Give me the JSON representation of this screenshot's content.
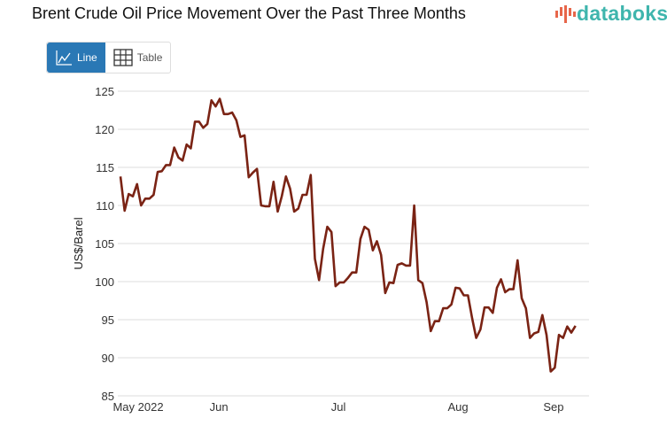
{
  "header": {
    "title": "Brent Crude Oil Price Movement Over the Past Three Months",
    "logo": "databoks"
  },
  "view_toggle": {
    "line_label": "Line",
    "table_label": "Table",
    "active": "Line"
  },
  "colors": {
    "line": "#7a2314",
    "accent": "#2a78b5",
    "logo": "#3fb5ad"
  },
  "chart_data": {
    "type": "line",
    "title": "Brent Crude Oil Price Movement Over the Past Three Months",
    "ylabel": "US$/Barel",
    "ylim": [
      85,
      125
    ],
    "yticks": [
      85,
      90,
      95,
      100,
      105,
      110,
      115,
      120,
      125
    ],
    "grid": true,
    "xticks": [
      {
        "label": "May 2022",
        "index": 0
      },
      {
        "label": "Jun",
        "index": 23.8
      },
      {
        "label": "Jul",
        "index": 52.7
      },
      {
        "label": "Aug",
        "index": 81.6
      },
      {
        "label": "Sep",
        "index": 104.7
      }
    ],
    "values": [
      113.8,
      109.3,
      111.5,
      111.2,
      112.8,
      110,
      110.9,
      110.9,
      111.4,
      114.4,
      114.5,
      115.3,
      115.3,
      117.6,
      116.3,
      115.9,
      118,
      117.5,
      121,
      121,
      120.2,
      120.7,
      123.8,
      123,
      124,
      122,
      122,
      122.2,
      121.2,
      119,
      119.2,
      113.7,
      114.3,
      114.8,
      110,
      109.9,
      109.9,
      113.1,
      109.2,
      111.2,
      113.8,
      112.2,
      109.2,
      109.6,
      111.4,
      111.4,
      114,
      103,
      100.2,
      104.3,
      107.2,
      106.5,
      99.4,
      99.9,
      99.9,
      100.5,
      101.2,
      101.2,
      105.6,
      107.2,
      106.8,
      104.1,
      105.3,
      103.5,
      98.5,
      99.9,
      99.8,
      102.2,
      102.4,
      102.1,
      102.1,
      110,
      100.2,
      99.8,
      97.3,
      93.5,
      94.8,
      94.8,
      96.5,
      96.5,
      97,
      99.2,
      99.1,
      98.2,
      98.2,
      95.2,
      92.6,
      93.7,
      96.6,
      96.6,
      95.9,
      99.2,
      100.3,
      98.6,
      99,
      99,
      102.8,
      97.8,
      96.5,
      92.6,
      93.2,
      93.4,
      95.6,
      93,
      88.2,
      88.7,
      93,
      92.6,
      94.1,
      93.3,
      94.2
    ]
  }
}
